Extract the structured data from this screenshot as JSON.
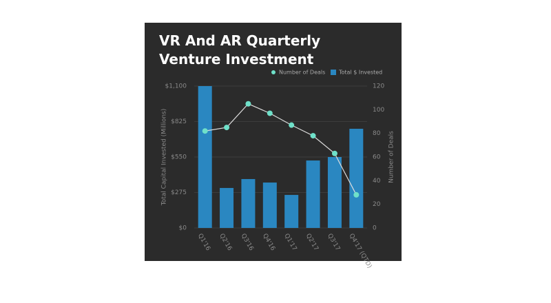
{
  "chart_data": {
    "type": "bar_line",
    "title": "VR And AR Quarterly Venture Investment",
    "categories": [
      "Q1'16",
      "Q2'16",
      "Q3'16",
      "Q4'16",
      "Q1'17",
      "Q2'17",
      "Q3'17",
      "Q4'17 (QTD)"
    ],
    "series": [
      {
        "name": "Total $ Invested",
        "type": "bar",
        "color": "#2a87c1",
        "values": [
          1100,
          310,
          379,
          352,
          256,
          523,
          550,
          769
        ]
      },
      {
        "name": "Number of Deals",
        "type": "line",
        "axis": "y2",
        "color": "#6fe0c9",
        "line_color": "#dddddd",
        "values": [
          82,
          85,
          105,
          97,
          87,
          78,
          63,
          28
        ]
      }
    ],
    "ylabel": "Total Capital Invested (Millions)",
    "y2label": "Number of Deals",
    "ylim": [
      0,
      1100
    ],
    "yticks": [
      {
        "value": 0,
        "label": "$0"
      },
      {
        "value": 275,
        "label": "$275"
      },
      {
        "value": 550,
        "label": "$550"
      },
      {
        "value": 825,
        "label": "$825"
      },
      {
        "value": 1100,
        "label": "$1,100"
      }
    ],
    "y2lim": [
      0,
      120
    ],
    "y2ticks": [
      0,
      20,
      40,
      60,
      80,
      100,
      120
    ],
    "grid": true,
    "legend": "top-right"
  }
}
